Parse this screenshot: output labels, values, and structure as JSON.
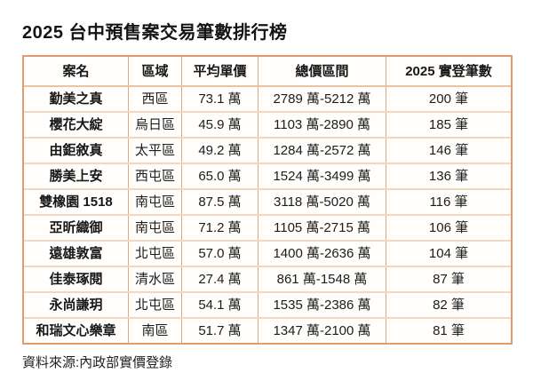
{
  "title": "2025 台中預售案交易筆數排行榜",
  "source_note": "資料來源:內政部實價登錄",
  "colors": {
    "background": "#FFFFFF",
    "table_outer_border": "#E29B6C",
    "table_vertical_line": "#E5A87D",
    "table_row_divider": "#F2D8C2",
    "text": "#1C1C1C"
  },
  "chart_data": {
    "type": "table",
    "title": "2025 台中預售案交易筆數排行榜",
    "columns": [
      "案名",
      "區域",
      "平均單價",
      "總價區間",
      "2025 實登筆數"
    ],
    "rows": [
      [
        "勤美之真",
        "西區",
        "73.1 萬",
        "2789 萬-5212 萬",
        "200 筆"
      ],
      [
        "櫻花大綻",
        "烏日區",
        "45.9 萬",
        "1103 萬-2890 萬",
        "185 筆"
      ],
      [
        "由鉅敘真",
        "太平區",
        "49.2 萬",
        "1284 萬-2572 萬",
        "146 筆"
      ],
      [
        "勝美上安",
        "西屯區",
        "65.0 萬",
        "1524 萬-3499 萬",
        "136 筆"
      ],
      [
        "雙橡園 1518",
        "南屯區",
        "87.5 萬",
        "3118 萬-5020 萬",
        "116 筆"
      ],
      [
        "亞昕織御",
        "南屯區",
        "71.2 萬",
        "1105 萬-2715 萬",
        "106 筆"
      ],
      [
        "遠雄敦富",
        "北屯區",
        "57.0 萬",
        "1400 萬-2636 萬",
        "104 筆"
      ],
      [
        "佳泰琢閱",
        "清水區",
        "27.4 萬",
        "861 萬-1548 萬",
        "87 筆"
      ],
      [
        "永尚謙玥",
        "北屯區",
        "54.1 萬",
        "1535 萬-2386 萬",
        "82 筆"
      ],
      [
        "和瑞文心樂章",
        "南區",
        "51.7 萬",
        "1347 萬-2100 萬",
        "81 筆"
      ]
    ],
    "records": [
      {
        "name": "勤美之真",
        "district": "西區",
        "avg_unit_price_wan": 73.1,
        "total_price_min_wan": 2789,
        "total_price_max_wan": 5212,
        "deals_2025": 200
      },
      {
        "name": "櫻花大綻",
        "district": "烏日區",
        "avg_unit_price_wan": 45.9,
        "total_price_min_wan": 1103,
        "total_price_max_wan": 2890,
        "deals_2025": 185
      },
      {
        "name": "由鉅敘真",
        "district": "太平區",
        "avg_unit_price_wan": 49.2,
        "total_price_min_wan": 1284,
        "total_price_max_wan": 2572,
        "deals_2025": 146
      },
      {
        "name": "勝美上安",
        "district": "西屯區",
        "avg_unit_price_wan": 65.0,
        "total_price_min_wan": 1524,
        "total_price_max_wan": 3499,
        "deals_2025": 136
      },
      {
        "name": "雙橡園 1518",
        "district": "南屯區",
        "avg_unit_price_wan": 87.5,
        "total_price_min_wan": 3118,
        "total_price_max_wan": 5020,
        "deals_2025": 116
      },
      {
        "name": "亞昕織御",
        "district": "南屯區",
        "avg_unit_price_wan": 71.2,
        "total_price_min_wan": 1105,
        "total_price_max_wan": 2715,
        "deals_2025": 106
      },
      {
        "name": "遠雄敦富",
        "district": "北屯區",
        "avg_unit_price_wan": 57.0,
        "total_price_min_wan": 1400,
        "total_price_max_wan": 2636,
        "deals_2025": 104
      },
      {
        "name": "佳泰琢閱",
        "district": "清水區",
        "avg_unit_price_wan": 27.4,
        "total_price_min_wan": 861,
        "total_price_max_wan": 1548,
        "deals_2025": 87
      },
      {
        "name": "永尚謙玥",
        "district": "北屯區",
        "avg_unit_price_wan": 54.1,
        "total_price_min_wan": 1535,
        "total_price_max_wan": 2386,
        "deals_2025": 82
      },
      {
        "name": "和瑞文心樂章",
        "district": "南區",
        "avg_unit_price_wan": 51.7,
        "total_price_min_wan": 1347,
        "total_price_max_wan": 2100,
        "deals_2025": 81
      }
    ]
  }
}
